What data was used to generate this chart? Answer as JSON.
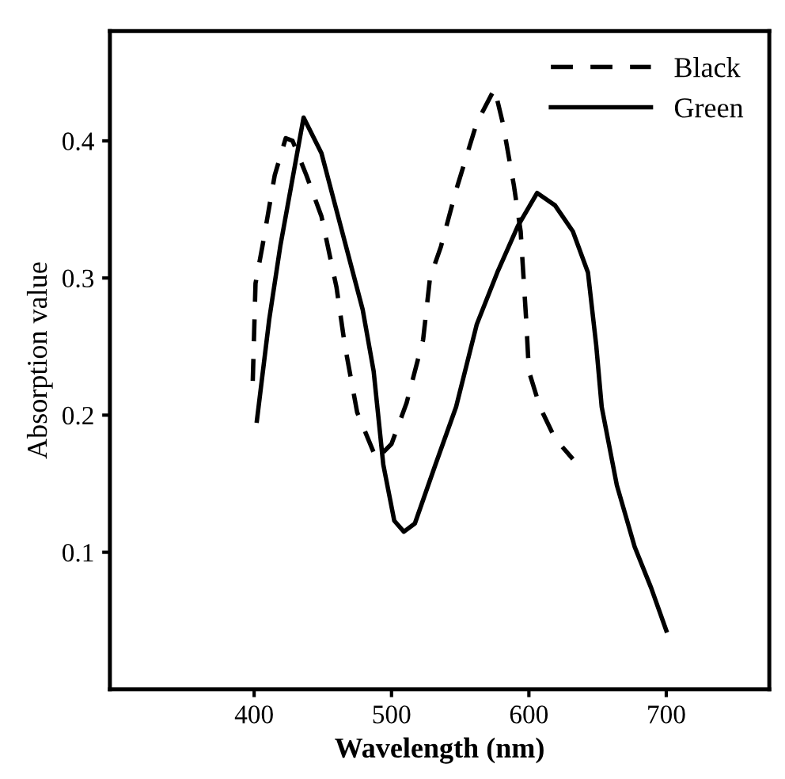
{
  "chart_data": {
    "type": "line",
    "xlabel": "Wavelength (nm)",
    "ylabel": "Absorption value",
    "xlim": [
      295,
      775
    ],
    "ylim": [
      0,
      0.48
    ],
    "xticks": [
      400,
      500,
      600,
      700
    ],
    "yticks": [
      0.1,
      0.2,
      0.3,
      0.4
    ],
    "grid": false,
    "legend": "top right",
    "marker": "none",
    "series": [
      {
        "name": "Black",
        "color": "#000000",
        "line_style": "dashed",
        "x": [
          399,
          401,
          406,
          415,
          423,
          428,
          438,
          449,
          460,
          466,
          475,
          489,
          500,
          511,
          523,
          528,
          536,
          547,
          562,
          575,
          581,
          589,
          594,
          598,
          600,
          608,
          619,
          632
        ],
        "values": [
          0.225,
          0.296,
          0.323,
          0.375,
          0.402,
          0.4,
          0.375,
          0.345,
          0.293,
          0.251,
          0.202,
          0.168,
          0.179,
          0.209,
          0.255,
          0.3,
          0.323,
          0.364,
          0.413,
          0.438,
          0.413,
          0.368,
          0.334,
          0.27,
          0.232,
          0.206,
          0.183,
          0.168
        ]
      },
      {
        "name": "Green",
        "color": "#000000",
        "line_style": "solid",
        "x": [
          402,
          411,
          419,
          436,
          449,
          464,
          479,
          487,
          494,
          502,
          509,
          517,
          532,
          547,
          562,
          577,
          592,
          606,
          619,
          632,
          643,
          649,
          653,
          664,
          677,
          689,
          700
        ],
        "values": [
          0.196,
          0.27,
          0.323,
          0.417,
          0.391,
          0.334,
          0.277,
          0.232,
          0.164,
          0.123,
          0.115,
          0.121,
          0.164,
          0.206,
          0.266,
          0.304,
          0.338,
          0.362,
          0.353,
          0.334,
          0.304,
          0.251,
          0.206,
          0.149,
          0.104,
          0.074,
          0.043
        ]
      }
    ]
  }
}
